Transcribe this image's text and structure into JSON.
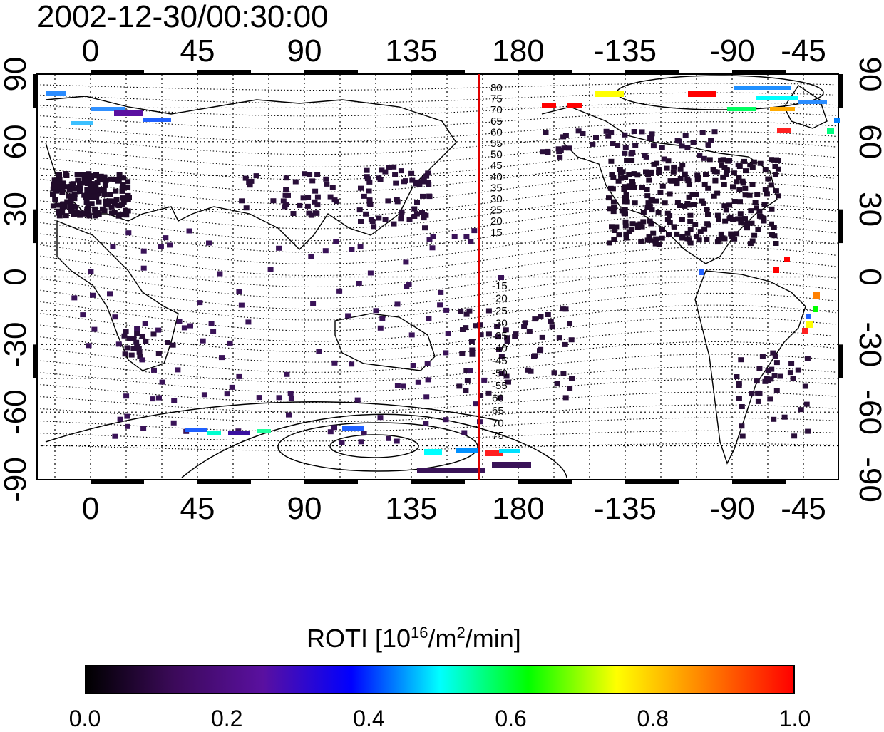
{
  "title": "2002-12-30/00:30:00",
  "map": {
    "lon_ticks_top": [
      "0",
      "45",
      "90",
      "135",
      "180",
      "-135",
      "-90",
      "-45"
    ],
    "lon_ticks_bottom": [
      "0",
      "45",
      "90",
      "135",
      "180",
      "-135",
      "-90",
      "-45"
    ],
    "lat_ticks_left": [
      "90",
      "60",
      "30",
      "0",
      "-30",
      "-60",
      "-90"
    ],
    "lat_ticks_right": [
      "90",
      "60",
      "30",
      "0",
      "-30",
      "-60",
      "-90"
    ],
    "meridian_marker_color": "#e00000",
    "contour_labels_north": [
      "80",
      "75",
      "70",
      "65",
      "60",
      "55",
      "50",
      "45",
      "40",
      "35",
      "30",
      "25",
      "20",
      "15"
    ],
    "contour_labels_south": [
      "-15",
      "-20",
      "-25",
      "-30",
      "-35",
      "-40",
      "-45",
      "-50",
      "-55",
      "60",
      "65",
      "70",
      "75"
    ]
  },
  "colorbar": {
    "title_main": "ROTI  [10",
    "title_sup1": "16",
    "title_mid": "/m",
    "title_sup2": "2",
    "title_end": "/min]",
    "tick_labels": [
      "0.0",
      "0.2",
      "0.4",
      "0.6",
      "0.8",
      "1.0"
    ],
    "colors": [
      "#000000",
      "#3c0a5a",
      "#5a10a0",
      "#0000ff",
      "#00ffff",
      "#00ff00",
      "#ffff00",
      "#ff8000",
      "#ff0000"
    ]
  }
}
